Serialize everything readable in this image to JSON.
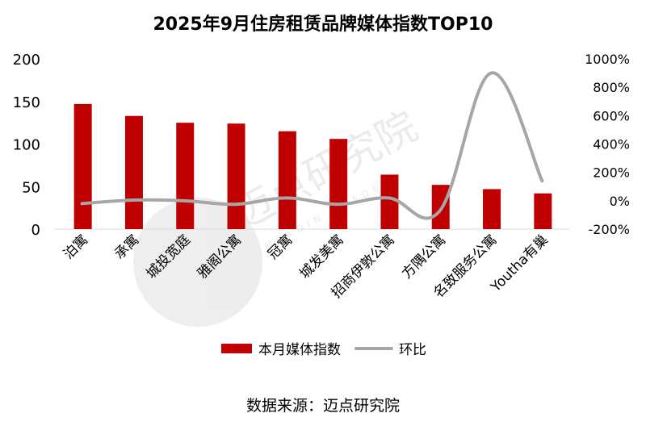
{
  "chart_data": {
    "type": "bar",
    "title": "2025年9月住房租赁品牌媒体指数TOP10",
    "categories": [
      "泊寓",
      "承寓",
      "城投宽庭",
      "雅阁公寓",
      "冠寓",
      "城发美寓",
      "招商伊敦公寓",
      "方隅公寓",
      "名致服务公寓",
      "Youtha有巢"
    ],
    "series": [
      {
        "name": "本月媒体指数",
        "type": "bar",
        "axis": "left",
        "color": "#C00000",
        "values": [
          147,
          133,
          125,
          124,
          115,
          106,
          64,
          52,
          47,
          42
        ]
      },
      {
        "name": "环比",
        "type": "line",
        "axis": "right",
        "color": "#A6A6A6",
        "values": [
          -20,
          5,
          0,
          -25,
          20,
          -25,
          20,
          -70,
          900,
          140
        ]
      }
    ],
    "y_left": {
      "min": 0,
      "max": 200,
      "ticks": [
        0,
        50,
        100,
        150,
        200
      ]
    },
    "y_right": {
      "min": -200,
      "max": 1000,
      "ticks": [
        "-200%",
        "0%",
        "200%",
        "400%",
        "600%",
        "800%",
        "1000%"
      ]
    },
    "legend_position": "bottom",
    "grid": false
  },
  "watermark": {
    "text": "迈点研究院",
    "subtext": "MEADIN ACADEMY"
  },
  "source_text": "数据来源：迈点研究院"
}
